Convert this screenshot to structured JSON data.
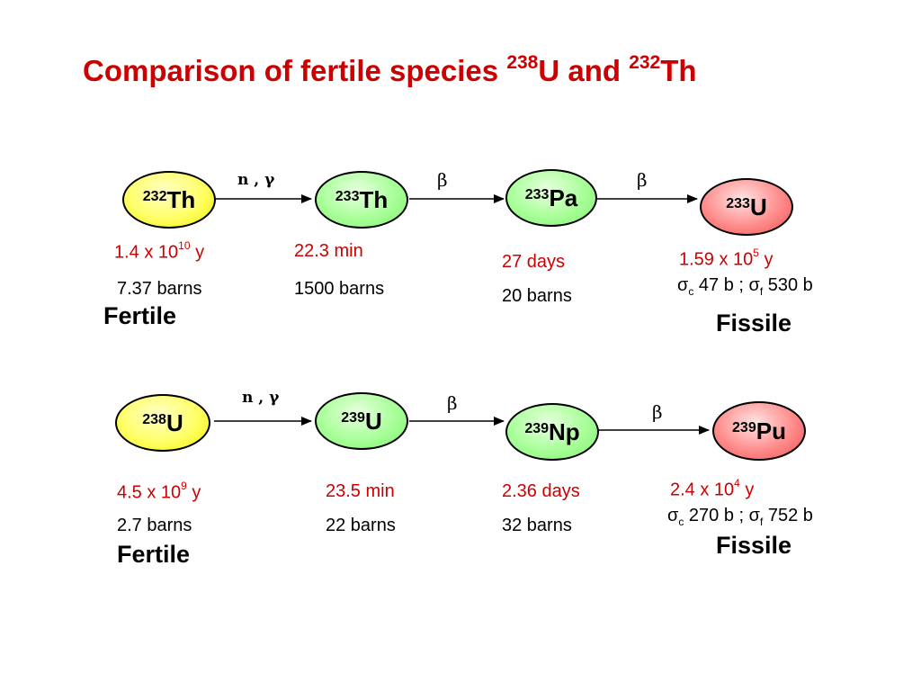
{
  "title": {
    "prefix": "Comparison of fertile species ",
    "mass1": "238",
    "el1": "U and ",
    "mass2": "232",
    "el2": "Th"
  },
  "colors": {
    "title": "#cc0000",
    "fertile_node": "#ffff66",
    "intermediate_node": "#a8ff98",
    "fissile_node": "#ff8c8c",
    "red_text": "#cc0000"
  },
  "thorium_chain": {
    "nodes": [
      {
        "mass": "232",
        "element": "Th"
      },
      {
        "mass": "233",
        "element": "Th"
      },
      {
        "mass": "233",
        "element": "Pa"
      },
      {
        "mass": "233",
        "element": "U"
      }
    ],
    "reactions": [
      "n , γ",
      "β",
      "β"
    ],
    "half_lives": [
      {
        "base": "1.4 x 10",
        "exp": "10",
        "unit": " y"
      },
      {
        "base": "22.3 min",
        "exp": "",
        "unit": ""
      },
      {
        "base": "27 days",
        "exp": "",
        "unit": ""
      },
      {
        "base": "1.59 x 10",
        "exp": "5",
        "unit": " y"
      }
    ],
    "cross_sections": [
      "7.37 barns",
      "1500 barns",
      "20 barns"
    ],
    "fissile_cross": {
      "sc_sym": "σ",
      "sc_sub": "c",
      "sc_val": " 47 b ; ",
      "sf_sym": "σ",
      "sf_sub": "f",
      "sf_val": "  530 b"
    },
    "fertile_label": "Fertile",
    "fissile_label": "Fissile"
  },
  "uranium_chain": {
    "nodes": [
      {
        "mass": "238",
        "element": "U"
      },
      {
        "mass": "239",
        "element": "U"
      },
      {
        "mass": "239",
        "element": "Np"
      },
      {
        "mass": "239",
        "element": "Pu"
      }
    ],
    "reactions": [
      "n , γ",
      "β",
      "β"
    ],
    "half_lives": [
      {
        "base": "4.5 x 10",
        "exp": "9",
        "unit": " y"
      },
      {
        "base": "23.5 min",
        "exp": "",
        "unit": ""
      },
      {
        "base": "2.36 days",
        "exp": "",
        "unit": ""
      },
      {
        "base": "2.4 x 10",
        "exp": "4",
        "unit": " y"
      }
    ],
    "cross_sections": [
      "2.7 barns",
      "22 barns",
      "32 barns"
    ],
    "fissile_cross": {
      "sc_sym": "σ",
      "sc_sub": "c",
      "sc_val": " 270 b ; ",
      "sf_sym": "σ",
      "sf_sub": "f",
      "sf_val": "  752 b"
    },
    "fertile_label": "Fertile",
    "fissile_label": "Fissile"
  }
}
